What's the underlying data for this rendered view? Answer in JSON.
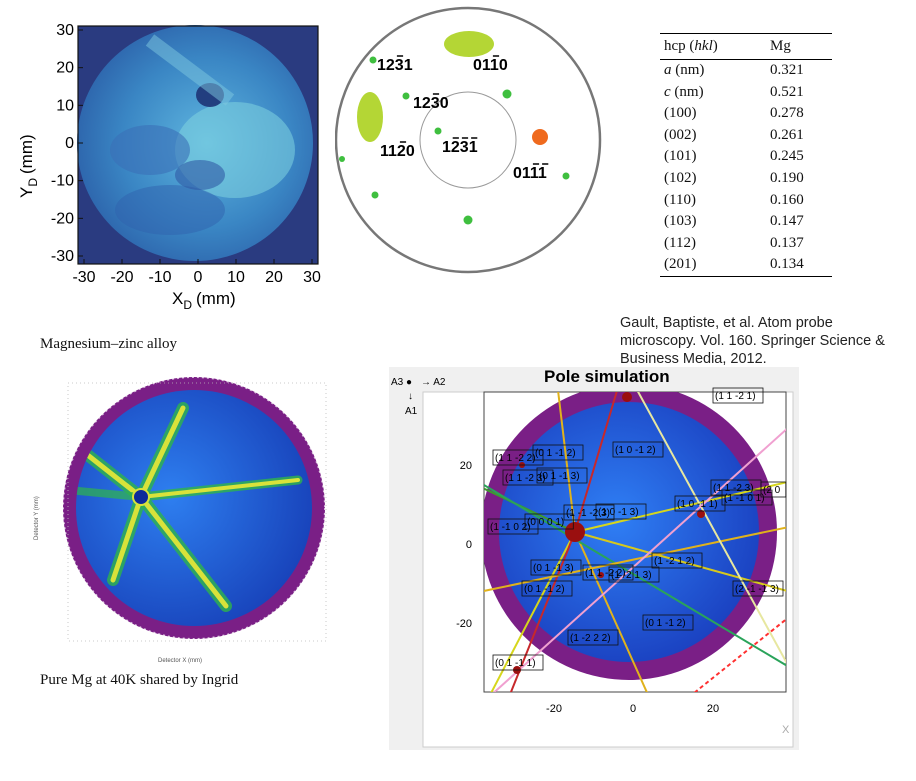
{
  "detector_map": {
    "x_label": "X",
    "x_sub": "D",
    "y_label": "Y",
    "y_sub": "D",
    "unit": "(mm)",
    "x_ticks": [
      "-30",
      "-20",
      "-10",
      "0",
      "10",
      "20",
      "30"
    ],
    "y_ticks": [
      "30",
      "20",
      "10",
      "0",
      "-10",
      "-20",
      "-30"
    ]
  },
  "stereogram": {
    "poles": [
      {
        "label": "1231",
        "bars": [
          2
        ]
      },
      {
        "label": "0110",
        "bars": [
          2
        ]
      },
      {
        "label": "1230",
        "bars": [
          2
        ]
      },
      {
        "label": "1120",
        "bars": [
          2
        ]
      },
      {
        "label": "1231",
        "bars": [
          1,
          2,
          3
        ]
      },
      {
        "label": "0111",
        "bars": [
          2,
          3
        ]
      }
    ],
    "colors": {
      "spot": "#3fbf3f",
      "ellipse": "#b4d635",
      "accent": "#ef6a1e"
    }
  },
  "lattice_table": {
    "headers": [
      "hcp (hkl)",
      "Mg"
    ],
    "header_italic": "hkl",
    "rows": [
      [
        "a (nm)",
        "0.321"
      ],
      [
        "c (nm)",
        "0.521"
      ],
      [
        "(100)",
        "0.278"
      ],
      [
        "(002)",
        "0.261"
      ],
      [
        "(101)",
        "0.245"
      ],
      [
        "(102)",
        "0.190"
      ],
      [
        "(110)",
        "0.160"
      ],
      [
        "(103)",
        "0.147"
      ],
      [
        "(112)",
        "0.137"
      ],
      [
        "(201)",
        "0.134"
      ]
    ]
  },
  "captions": {
    "alloy": "Magnesium–zinc alloy",
    "citation": "Gault, Baptiste, et al. Atom probe microscopy. Vol. 160. Springer Science & Business Media, 2012.",
    "pure_mg": "Pure Mg at 40K shared by Ingrid"
  },
  "pole_simulation": {
    "title": "Pole simulation",
    "axes_legend": {
      "a3": "A3 ●",
      "a2": "→ A2",
      "a1": "A1",
      "down": "↓"
    },
    "y_ticks": [
      "20",
      "0",
      "-20"
    ],
    "x_ticks": [
      "-20",
      "0",
      "20"
    ],
    "corner": "X",
    "labels": [
      "(1 1 -2 2)",
      "(1 1 -2 3)",
      "(0 1 -1 2)",
      "(0 1 -1 3)",
      "(1 -1 0 2)",
      "(0 0 0 1)",
      "(1 0 -1 2)",
      "(1 0 -1 3)",
      "(1 0 -1 1)",
      "(1 -1 -2 3)",
      "(1 1 -2 3)",
      "(0 1 -1 3)",
      "(0 1 -1 2)",
      "(1 1 -2 2)",
      "(1 -2 1 3)",
      "(1 -2 1 2)",
      "(2 -1 -1 3)",
      "(1 -2 2 2)",
      "(0 1 -1 1)",
      "(0 1 -1 2)",
      "(1 1 -2 1)",
      "(1 -1 0 1)",
      "(2 0"
    ],
    "colors": {
      "ring": "#7a1f86",
      "field": "#1b4fd6",
      "spot": "#9a0f0f"
    }
  },
  "pure_mg_map": {
    "x_label": "Detector X (mm)",
    "y_label": "Detector Y (mm)",
    "colors": {
      "ring": "#7a1f86",
      "field": "#1d58e0",
      "streak": "#d8e23a"
    }
  }
}
